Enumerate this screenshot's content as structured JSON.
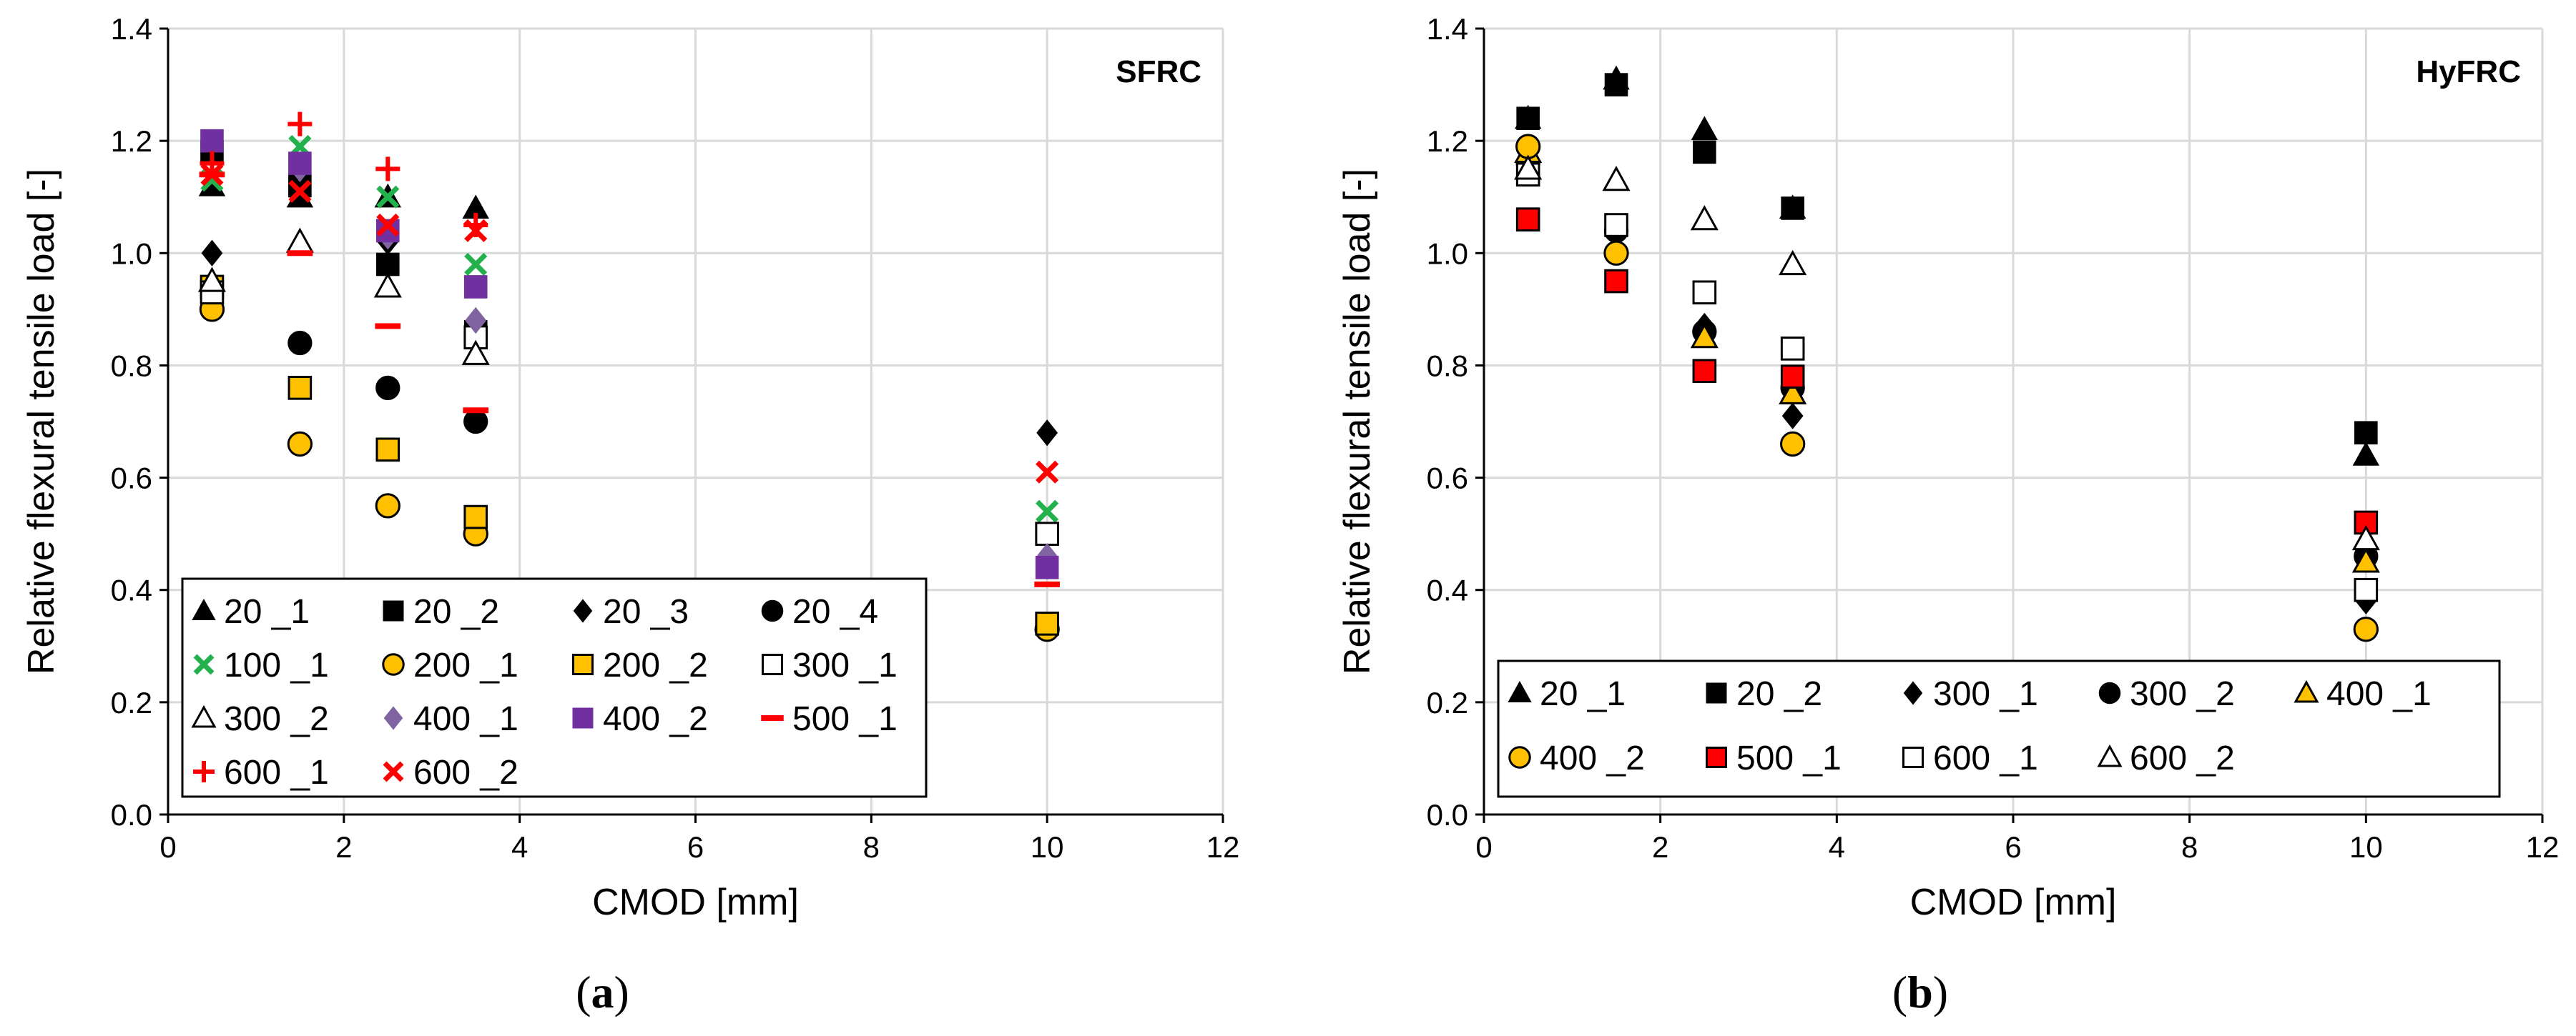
{
  "chart_data": [
    {
      "type": "scatter",
      "title": "SFRC",
      "panel_label": "(a)",
      "xlabel": "CMOD [mm]",
      "ylabel": "Relative flexural tensile load [-]",
      "xlim": [
        0,
        12
      ],
      "ylim": [
        0,
        1.4
      ],
      "xticks": [
        "0",
        "2",
        "4",
        "6",
        "8",
        "10",
        "12"
      ],
      "yticks": [
        "0.0",
        "0.2",
        "0.4",
        "0.6",
        "0.8",
        "1.0",
        "1.2",
        "1.4"
      ],
      "grid": true,
      "legend_position": "bottom-left",
      "series": [
        {
          "name": "20 _1",
          "marker": "triangle",
          "color": "#000000",
          "x": [
            0.5,
            1.5,
            2.5,
            3.5,
            10
          ],
          "y": [
            1.12,
            1.1,
            1.1,
            1.08,
            null
          ]
        },
        {
          "name": "20 _2",
          "marker": "square",
          "color": "#000000",
          "x": [
            0.5,
            1.5,
            2.5,
            3.5,
            10
          ],
          "y": [
            1.18,
            1.12,
            0.98,
            0.86,
            null
          ]
        },
        {
          "name": "20 _3",
          "marker": "diamond",
          "color": "#000000",
          "x": [
            0.5,
            1.5,
            2.5,
            3.5,
            10
          ],
          "y": [
            1.0,
            1.13,
            1.02,
            0.88,
            0.68
          ]
        },
        {
          "name": "20 _4",
          "marker": "circle",
          "color": "#000000",
          "x": [
            0.5,
            1.5,
            2.5,
            3.5,
            10
          ],
          "y": [
            null,
            0.84,
            0.76,
            0.7,
            null
          ]
        },
        {
          "name": "100 _1",
          "marker": "x",
          "color": "#22b14c",
          "x": [
            0.5,
            1.5,
            2.5,
            3.5,
            10
          ],
          "y": [
            1.13,
            1.19,
            1.1,
            0.98,
            0.54
          ]
        },
        {
          "name": "200 _1",
          "marker": "circle-open",
          "color": "#ffc000",
          "x": [
            0.5,
            1.5,
            2.5,
            3.5,
            10
          ],
          "y": [
            0.9,
            0.66,
            0.55,
            0.5,
            0.33
          ]
        },
        {
          "name": "200 _2",
          "marker": "square-open",
          "color": "#ffc000",
          "x": [
            0.5,
            1.5,
            2.5,
            3.5,
            10
          ],
          "y": [
            0.94,
            0.76,
            0.65,
            0.53,
            0.34
          ]
        },
        {
          "name": "300 _1",
          "marker": "square-hollow",
          "color": "#000000",
          "x": [
            0.5,
            1.5,
            2.5,
            3.5,
            10
          ],
          "y": [
            0.93,
            null,
            null,
            0.85,
            0.5
          ]
        },
        {
          "name": "300 _2",
          "marker": "triangle-hollow",
          "color": "#000000",
          "x": [
            0.5,
            1.5,
            2.5,
            3.5,
            10
          ],
          "y": [
            0.95,
            1.02,
            0.94,
            0.82,
            null
          ]
        },
        {
          "name": "400 _1",
          "marker": "diamond",
          "color": "#8064a2",
          "x": [
            0.5,
            1.5,
            2.5,
            3.5,
            10
          ],
          "y": [
            null,
            1.15,
            1.03,
            0.88,
            0.46
          ]
        },
        {
          "name": "400 _2",
          "marker": "square",
          "color": "#7030a0",
          "x": [
            0.5,
            1.5,
            2.5,
            3.5,
            10
          ],
          "y": [
            1.2,
            1.16,
            1.04,
            0.94,
            0.44
          ]
        },
        {
          "name": "500 _1",
          "marker": "dash",
          "color": "#ff0000",
          "x": [
            0.5,
            1.5,
            2.5,
            3.5,
            10
          ],
          "y": [
            1.14,
            1.0,
            0.87,
            0.72,
            0.41
          ]
        },
        {
          "name": "600 _1",
          "marker": "plus",
          "color": "#ff0000",
          "x": [
            0.5,
            1.5,
            2.5,
            3.5,
            10
          ],
          "y": [
            1.16,
            1.23,
            1.15,
            1.05,
            null
          ]
        },
        {
          "name": "600 _2",
          "marker": "x",
          "color": "#ff0000",
          "x": [
            0.5,
            1.5,
            2.5,
            3.5,
            10
          ],
          "y": [
            1.14,
            1.11,
            1.05,
            1.04,
            0.61
          ]
        }
      ]
    },
    {
      "type": "scatter",
      "title": "HyFRC",
      "panel_label": "(b)",
      "xlabel": "CMOD [mm]",
      "ylabel": "Relative flexural tensile load [-]",
      "xlim": [
        0,
        12
      ],
      "ylim": [
        0,
        1.4
      ],
      "xticks": [
        "0",
        "2",
        "4",
        "6",
        "8",
        "10",
        "12"
      ],
      "yticks": [
        "0.0",
        "0.2",
        "0.4",
        "0.6",
        "0.8",
        "1.0",
        "1.2",
        "1.4"
      ],
      "grid": true,
      "legend_position": "bottom-left",
      "series": [
        {
          "name": "20 _1",
          "marker": "triangle",
          "color": "#000000",
          "x": [
            0.5,
            1.5,
            2.5,
            3.5,
            10
          ],
          "y": [
            1.24,
            1.31,
            1.22,
            1.08,
            0.64
          ]
        },
        {
          "name": "20 _2",
          "marker": "square",
          "color": "#000000",
          "x": [
            0.5,
            1.5,
            2.5,
            3.5,
            10
          ],
          "y": [
            1.24,
            1.3,
            1.18,
            1.08,
            0.68
          ]
        },
        {
          "name": "300 _1",
          "marker": "diamond",
          "color": "#000000",
          "x": [
            0.5,
            1.5,
            2.5,
            3.5,
            10
          ],
          "y": [
            1.16,
            1.04,
            0.87,
            0.71,
            0.38
          ]
        },
        {
          "name": "300 _2",
          "marker": "circle",
          "color": "#000000",
          "x": [
            0.5,
            1.5,
            2.5,
            3.5,
            10
          ],
          "y": [
            1.16,
            1.04,
            0.86,
            0.76,
            0.46
          ]
        },
        {
          "name": "400 _1",
          "marker": "triangle-open",
          "color": "#ffc000",
          "x": [
            0.5,
            1.5,
            2.5,
            3.5,
            10
          ],
          "y": [
            1.18,
            null,
            0.85,
            0.75,
            0.45
          ]
        },
        {
          "name": "400 _2",
          "marker": "circle-open",
          "color": "#ffc000",
          "x": [
            0.5,
            1.5,
            2.5,
            3.5,
            10
          ],
          "y": [
            1.19,
            1.0,
            null,
            0.66,
            0.33
          ]
        },
        {
          "name": "500 _1",
          "marker": "square-open",
          "color": "#ff0000",
          "x": [
            0.5,
            1.5,
            2.5,
            3.5,
            10
          ],
          "y": [
            1.06,
            0.95,
            0.79,
            0.78,
            0.52
          ]
        },
        {
          "name": "600 _1",
          "marker": "square-hollow",
          "color": "#000000",
          "x": [
            0.5,
            1.5,
            2.5,
            3.5,
            10
          ],
          "y": [
            1.14,
            1.05,
            0.93,
            0.83,
            0.4
          ]
        },
        {
          "name": "600 _2",
          "marker": "triangle-hollow",
          "color": "#000000",
          "x": [
            0.5,
            1.5,
            2.5,
            3.5,
            10
          ],
          "y": [
            1.15,
            1.13,
            1.06,
            0.98,
            0.49
          ]
        }
      ]
    }
  ]
}
